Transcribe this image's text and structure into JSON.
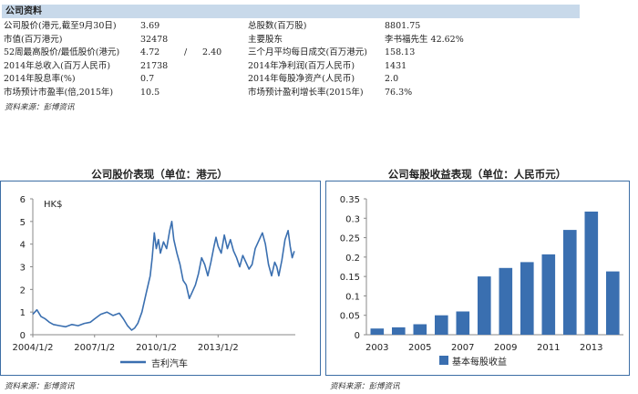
{
  "section_title": "公司资料",
  "table": [
    {
      "l1": "公司股价(港元,截至9月30日)",
      "v1": "3.69",
      "sep": "",
      "v1b": "",
      "l2": "总股数(百万股)",
      "v2": "8801.75"
    },
    {
      "l1": "市值(百万港元)",
      "v1": "32478",
      "sep": "",
      "v1b": "",
      "l2": "主要股东",
      "v2": "李书福先生 42.62%"
    },
    {
      "l1": "52周最高股价/最低股价(港元)",
      "v1": "4.72",
      "sep": "/",
      "v1b": "2.40",
      "l2": "三个月平均每日成交(百万港元)",
      "v2": "158.13"
    },
    {
      "l1": "2014年总收入(百万人民币)",
      "v1": "21738",
      "sep": "",
      "v1b": "",
      "l2": "2014年净利润(百万人民币)",
      "v2": "1431"
    },
    {
      "l1": "2014年股息率(%)",
      "v1": "0.7",
      "sep": "",
      "v1b": "",
      "l2": "2014年每股净资产(人民币)",
      "v2": "2.0"
    },
    {
      "l1": "市场预计市盈率(倍,2015年)",
      "v1": "10.5",
      "sep": "",
      "v1b": "",
      "l2": "市场预计盈利增长率(2015年)",
      "v2": "76.3%"
    }
  ],
  "source_note": "资料来源：彭博资讯",
  "chart_data": [
    {
      "type": "line",
      "title": "公司股价表现（单位：港元）",
      "unit_label": "HK$",
      "ylim": [
        0,
        6
      ],
      "yticks": [
        "0",
        "1",
        "2",
        "3",
        "4",
        "5",
        "6"
      ],
      "xticks": [
        "2004/1/2",
        "2007/1/2",
        "2010/1/2",
        "2013/1/2"
      ],
      "x_range": [
        2004.0,
        2016.75
      ],
      "legend_position": "bottom",
      "series": [
        {
          "name": "吉利汽车",
          "color": "#3a6fb0",
          "points": [
            [
              2004.0,
              0.9
            ],
            [
              2004.2,
              1.1
            ],
            [
              2004.4,
              0.8
            ],
            [
              2004.6,
              0.7
            ],
            [
              2004.8,
              0.55
            ],
            [
              2005.0,
              0.45
            ],
            [
              2005.3,
              0.4
            ],
            [
              2005.6,
              0.35
            ],
            [
              2005.9,
              0.45
            ],
            [
              2006.2,
              0.4
            ],
            [
              2006.5,
              0.5
            ],
            [
              2006.8,
              0.55
            ],
            [
              2007.0,
              0.7
            ],
            [
              2007.3,
              0.9
            ],
            [
              2007.6,
              1.0
            ],
            [
              2007.9,
              0.85
            ],
            [
              2008.2,
              0.95
            ],
            [
              2008.4,
              0.7
            ],
            [
              2008.6,
              0.4
            ],
            [
              2008.8,
              0.2
            ],
            [
              2008.95,
              0.3
            ],
            [
              2009.1,
              0.5
            ],
            [
              2009.3,
              1.0
            ],
            [
              2009.5,
              1.8
            ],
            [
              2009.7,
              2.6
            ],
            [
              2009.8,
              3.4
            ],
            [
              2009.9,
              4.5
            ],
            [
              2010.0,
              3.8
            ],
            [
              2010.1,
              4.2
            ],
            [
              2010.2,
              3.6
            ],
            [
              2010.35,
              4.1
            ],
            [
              2010.5,
              3.8
            ],
            [
              2010.65,
              4.6
            ],
            [
              2010.75,
              5.0
            ],
            [
              2010.85,
              4.2
            ],
            [
              2011.0,
              3.6
            ],
            [
              2011.15,
              3.1
            ],
            [
              2011.3,
              2.4
            ],
            [
              2011.45,
              2.2
            ],
            [
              2011.6,
              1.6
            ],
            [
              2011.75,
              1.9
            ],
            [
              2011.9,
              2.2
            ],
            [
              2012.05,
              2.7
            ],
            [
              2012.2,
              3.4
            ],
            [
              2012.35,
              3.1
            ],
            [
              2012.5,
              2.6
            ],
            [
              2012.65,
              3.2
            ],
            [
              2012.8,
              3.9
            ],
            [
              2012.9,
              4.3
            ],
            [
              2013.0,
              3.9
            ],
            [
              2013.15,
              3.6
            ],
            [
              2013.3,
              4.4
            ],
            [
              2013.45,
              3.8
            ],
            [
              2013.6,
              4.2
            ],
            [
              2013.75,
              3.7
            ],
            [
              2013.9,
              3.4
            ],
            [
              2014.05,
              3.0
            ],
            [
              2014.2,
              3.5
            ],
            [
              2014.35,
              3.2
            ],
            [
              2014.5,
              2.9
            ],
            [
              2014.65,
              3.1
            ],
            [
              2014.8,
              3.8
            ],
            [
              2015.0,
              4.2
            ],
            [
              2015.15,
              4.5
            ],
            [
              2015.3,
              4.0
            ],
            [
              2015.45,
              3.1
            ],
            [
              2015.6,
              2.6
            ],
            [
              2015.75,
              3.2
            ],
            [
              2015.85,
              3.0
            ],
            [
              2015.95,
              2.6
            ],
            [
              2016.1,
              3.3
            ],
            [
              2016.25,
              4.2
            ],
            [
              2016.4,
              4.6
            ],
            [
              2016.5,
              3.9
            ],
            [
              2016.6,
              3.4
            ],
            [
              2016.7,
              3.69
            ]
          ]
        }
      ]
    },
    {
      "type": "bar",
      "title": "公司每股收益表现（单位：人民币元）",
      "ylim": [
        0,
        0.35
      ],
      "yticks": [
        "0",
        "0.05",
        "0.1",
        "0.15",
        "0.2",
        "0.25",
        "0.3",
        "0.35"
      ],
      "categories": [
        "2003",
        "2004",
        "2005",
        "2006",
        "2007",
        "2008",
        "2009",
        "2010",
        "2011",
        "2012",
        "2013",
        "2014"
      ],
      "xtick_labels": [
        "2003",
        "2005",
        "2007",
        "2009",
        "2011",
        "2013"
      ],
      "legend_position": "bottom",
      "series": [
        {
          "name": "基本每股收益",
          "color": "#3a6fb0",
          "values": [
            0.016,
            0.019,
            0.027,
            0.05,
            0.06,
            0.15,
            0.172,
            0.187,
            0.207,
            0.27,
            0.317,
            0.163
          ]
        }
      ]
    }
  ]
}
